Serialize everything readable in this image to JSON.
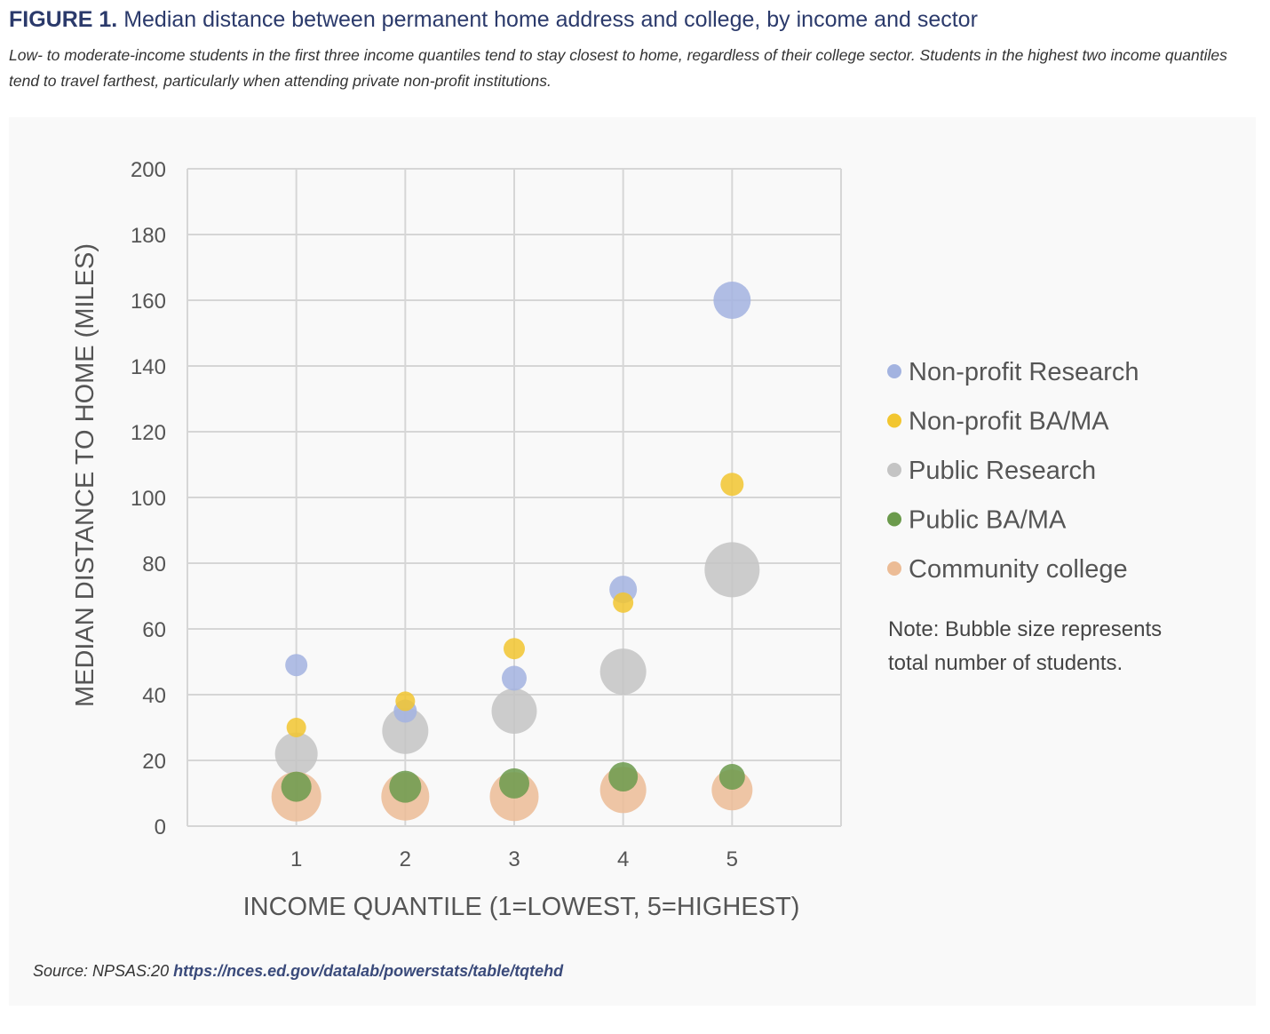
{
  "figure": {
    "label": "FIGURE 1.",
    "title": "Median distance between permanent home address and college, by income and sector",
    "subtitle": "Low- to moderate-income students in the first three income quantiles tend to stay closest to home, regardless of their college sector. Students in the highest two income quantiles tend to travel farthest, particularly when attending private non-profit institutions.",
    "note": "Note: Bubble size represents total number of students.",
    "source_label": "Source: NPSAS:20",
    "source_link": "https://nces.ed.gov/datalab/powerstats/table/tqtehd"
  },
  "chart_data": {
    "type": "bubble",
    "xlabel": "INCOME QUANTILE (1=LOWEST, 5=HIGHEST)",
    "ylabel": "MEDIAN DISTANCE TO HOME (MILES)",
    "xlim": [
      0,
      6
    ],
    "ylim": [
      0,
      200
    ],
    "xticks": [
      "1",
      "2",
      "3",
      "4",
      "5"
    ],
    "yticks": [
      "0",
      "20",
      "40",
      "60",
      "80",
      "100",
      "120",
      "140",
      "160",
      "180",
      "200"
    ],
    "grid": true,
    "legend_position": "right",
    "x": [
      1,
      2,
      3,
      4,
      5
    ],
    "series": [
      {
        "name": "Non-profit Research",
        "color": "#a3b3e0",
        "y": [
          49,
          35,
          45,
          72,
          160
        ],
        "size": [
          156,
          169,
          196,
          240,
          441
        ]
      },
      {
        "name": "Non-profit BA/MA",
        "color": "#f2c630",
        "y": [
          30,
          38,
          54,
          68,
          104
        ],
        "size": [
          121,
          121,
          144,
          132,
          169
        ]
      },
      {
        "name": "Public Research",
        "color": "#c4c4c4",
        "y": [
          22,
          29,
          35,
          47,
          78
        ],
        "size": [
          576,
          676,
          650,
          676,
          961
        ]
      },
      {
        "name": "Public BA/MA",
        "color": "#6b9a4c",
        "y": [
          12,
          12,
          13,
          15,
          15
        ],
        "size": [
          289,
          324,
          289,
          272,
          210
        ]
      },
      {
        "name": "Community college",
        "color": "#ecbc96",
        "y": [
          9,
          9,
          9,
          11,
          11
        ],
        "size": [
          784,
          729,
          756,
          676,
          529
        ]
      }
    ]
  }
}
